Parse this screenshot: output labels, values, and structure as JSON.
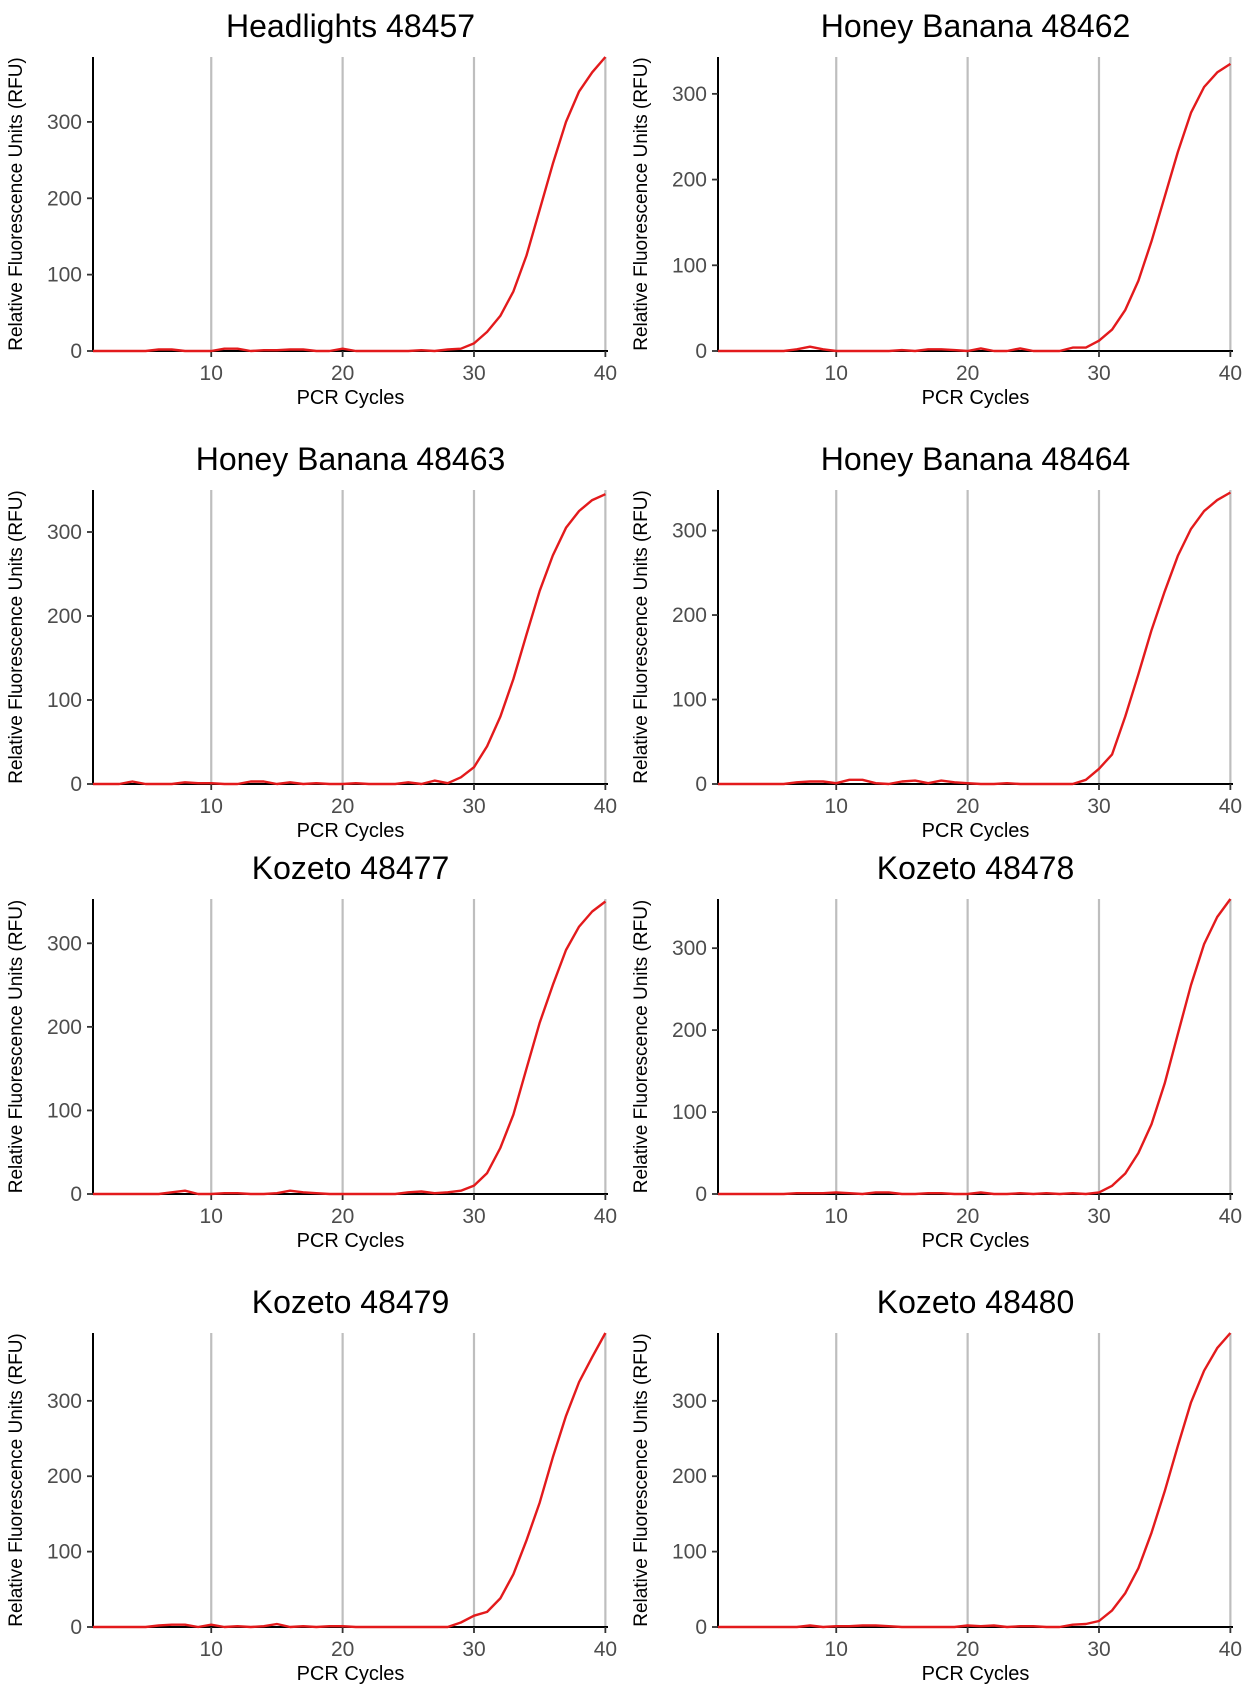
{
  "x_label": "PCR Cycles",
  "y_label": "Relative Fluorescence Units (RFU)",
  "colors": {
    "curve": "#e31a1c",
    "grid": "#bebebe",
    "axis": "#000000",
    "tick_text": "#4d4d4d"
  },
  "chart_data": [
    {
      "type": "line",
      "title": "Headlights 48457",
      "xlabel": "PCR Cycles",
      "ylabel": "Relative Fluorescence Units (RFU)",
      "xlim": [
        1,
        40.2
      ],
      "ylim": [
        0,
        385
      ],
      "x_ticks": [
        10,
        20,
        30,
        40
      ],
      "y_ticks": [
        0,
        100,
        200,
        300
      ],
      "grid_x": [
        10,
        20,
        30,
        40
      ],
      "x": [
        1,
        2,
        3,
        4,
        5,
        6,
        7,
        8,
        9,
        10,
        11,
        12,
        13,
        14,
        15,
        16,
        17,
        18,
        19,
        20,
        21,
        22,
        23,
        24,
        25,
        26,
        27,
        28,
        29,
        30,
        31,
        32,
        33,
        34,
        35,
        36,
        37,
        38,
        39,
        40
      ],
      "values": [
        0,
        0,
        0,
        0,
        0,
        2,
        2,
        0,
        0,
        0,
        3,
        3,
        0,
        1,
        1,
        2,
        2,
        0,
        0,
        3,
        0,
        0,
        0,
        0,
        0,
        1,
        0,
        2,
        3,
        10,
        25,
        46,
        78,
        125,
        185,
        245,
        300,
        340,
        365,
        385
      ]
    },
    {
      "type": "line",
      "title": "Honey Banana 48462",
      "xlabel": "PCR Cycles",
      "ylabel": "Relative Fluorescence Units (RFU)",
      "xlim": [
        1,
        40.2
      ],
      "ylim": [
        0,
        343
      ],
      "x_ticks": [
        10,
        20,
        30,
        40
      ],
      "y_ticks": [
        0,
        100,
        200,
        300
      ],
      "grid_x": [
        10,
        20,
        30,
        40
      ],
      "x": [
        1,
        2,
        3,
        4,
        5,
        6,
        7,
        8,
        9,
        10,
        11,
        12,
        13,
        14,
        15,
        16,
        17,
        18,
        19,
        20,
        21,
        22,
        23,
        24,
        25,
        26,
        27,
        28,
        29,
        30,
        31,
        32,
        33,
        34,
        35,
        36,
        37,
        38,
        39,
        40
      ],
      "values": [
        0,
        0,
        0,
        0,
        0,
        0,
        2,
        5,
        2,
        0,
        0,
        0,
        0,
        0,
        1,
        0,
        2,
        2,
        1,
        0,
        3,
        0,
        0,
        3,
        0,
        0,
        0,
        4,
        4,
        12,
        25,
        48,
        82,
        128,
        180,
        232,
        278,
        308,
        325,
        335
      ]
    },
    {
      "type": "line",
      "title": "Honey Banana 48463",
      "xlabel": "PCR Cycles",
      "ylabel": "Relative Fluorescence Units (RFU)",
      "xlim": [
        1,
        40.2
      ],
      "ylim": [
        0,
        350
      ],
      "x_ticks": [
        10,
        20,
        30,
        40
      ],
      "y_ticks": [
        0,
        100,
        200,
        300
      ],
      "grid_x": [
        10,
        20,
        30,
        40
      ],
      "x": [
        1,
        2,
        3,
        4,
        5,
        6,
        7,
        8,
        9,
        10,
        11,
        12,
        13,
        14,
        15,
        16,
        17,
        18,
        19,
        20,
        21,
        22,
        23,
        24,
        25,
        26,
        27,
        28,
        29,
        30,
        31,
        32,
        33,
        34,
        35,
        36,
        37,
        38,
        39,
        40
      ],
      "values": [
        0,
        0,
        0,
        3,
        0,
        0,
        0,
        2,
        1,
        1,
        0,
        0,
        3,
        3,
        0,
        2,
        0,
        1,
        0,
        0,
        1,
        0,
        0,
        0,
        2,
        0,
        4,
        1,
        8,
        20,
        45,
        80,
        125,
        178,
        230,
        272,
        305,
        325,
        338,
        345
      ]
    },
    {
      "type": "line",
      "title": "Honey Banana 48464",
      "xlabel": "PCR Cycles",
      "ylabel": "Relative Fluorescence Units (RFU)",
      "xlim": [
        1,
        40.2
      ],
      "ylim": [
        0,
        348
      ],
      "x_ticks": [
        10,
        20,
        30,
        40
      ],
      "y_ticks": [
        0,
        100,
        200,
        300
      ],
      "grid_x": [
        10,
        20,
        30,
        40
      ],
      "x": [
        1,
        2,
        3,
        4,
        5,
        6,
        7,
        8,
        9,
        10,
        11,
        12,
        13,
        14,
        15,
        16,
        17,
        18,
        19,
        20,
        21,
        22,
        23,
        24,
        25,
        26,
        27,
        28,
        29,
        30,
        31,
        32,
        33,
        34,
        35,
        36,
        37,
        38,
        39,
        40
      ],
      "values": [
        0,
        0,
        0,
        0,
        0,
        0,
        2,
        3,
        3,
        1,
        5,
        5,
        1,
        0,
        3,
        4,
        1,
        4,
        2,
        1,
        0,
        0,
        1,
        0,
        0,
        0,
        0,
        0,
        5,
        18,
        35,
        80,
        130,
        182,
        228,
        270,
        302,
        323,
        336,
        345
      ]
    },
    {
      "type": "line",
      "title": "Kozeto 48477",
      "xlabel": "PCR Cycles",
      "ylabel": "Relative Fluorescence Units (RFU)",
      "xlim": [
        1,
        40.2
      ],
      "ylim": [
        0,
        353
      ],
      "x_ticks": [
        10,
        20,
        30,
        40
      ],
      "y_ticks": [
        0,
        100,
        200,
        300
      ],
      "grid_x": [
        10,
        20,
        30,
        40
      ],
      "x": [
        1,
        2,
        3,
        4,
        5,
        6,
        7,
        8,
        9,
        10,
        11,
        12,
        13,
        14,
        15,
        16,
        17,
        18,
        19,
        20,
        21,
        22,
        23,
        24,
        25,
        26,
        27,
        28,
        29,
        30,
        31,
        32,
        33,
        34,
        35,
        36,
        37,
        38,
        39,
        40
      ],
      "values": [
        0,
        0,
        0,
        0,
        0,
        0,
        2,
        4,
        0,
        0,
        1,
        1,
        0,
        0,
        1,
        4,
        2,
        1,
        0,
        0,
        0,
        0,
        0,
        0,
        2,
        3,
        1,
        2,
        4,
        10,
        25,
        55,
        95,
        150,
        205,
        250,
        292,
        320,
        338,
        350
      ]
    },
    {
      "type": "line",
      "title": "Kozeto 48478",
      "xlabel": "PCR Cycles",
      "ylabel": "Relative Fluorescence Units (RFU)",
      "xlim": [
        1,
        40.2
      ],
      "ylim": [
        0,
        360
      ],
      "x_ticks": [
        10,
        20,
        30,
        40
      ],
      "y_ticks": [
        0,
        100,
        200,
        300
      ],
      "grid_x": [
        10,
        20,
        30,
        40
      ],
      "x": [
        1,
        2,
        3,
        4,
        5,
        6,
        7,
        8,
        9,
        10,
        11,
        12,
        13,
        14,
        15,
        16,
        17,
        18,
        19,
        20,
        21,
        22,
        23,
        24,
        25,
        26,
        27,
        28,
        29,
        30,
        31,
        32,
        33,
        34,
        35,
        36,
        37,
        38,
        39,
        40
      ],
      "values": [
        0,
        0,
        0,
        0,
        0,
        0,
        1,
        1,
        1,
        2,
        1,
        0,
        2,
        2,
        0,
        0,
        1,
        1,
        0,
        0,
        2,
        0,
        0,
        1,
        0,
        1,
        0,
        1,
        0,
        2,
        10,
        25,
        50,
        85,
        135,
        195,
        255,
        305,
        338,
        360
      ]
    },
    {
      "type": "line",
      "title": "Kozeto 48479",
      "xlabel": "PCR Cycles",
      "ylabel": "Relative Fluorescence Units (RFU)",
      "xlim": [
        1,
        40.2
      ],
      "ylim": [
        0,
        390
      ],
      "x_ticks": [
        10,
        20,
        30,
        40
      ],
      "y_ticks": [
        0,
        100,
        200,
        300
      ],
      "grid_x": [
        10,
        20,
        30,
        40
      ],
      "x": [
        1,
        2,
        3,
        4,
        5,
        6,
        7,
        8,
        9,
        10,
        11,
        12,
        13,
        14,
        15,
        16,
        17,
        18,
        19,
        20,
        21,
        22,
        23,
        24,
        25,
        26,
        27,
        28,
        29,
        30,
        31,
        32,
        33,
        34,
        35,
        36,
        37,
        38,
        39,
        40
      ],
      "values": [
        0,
        0,
        0,
        0,
        0,
        2,
        3,
        3,
        0,
        3,
        0,
        1,
        0,
        1,
        4,
        0,
        1,
        0,
        1,
        1,
        0,
        0,
        0,
        0,
        0,
        0,
        0,
        0,
        6,
        15,
        20,
        38,
        70,
        115,
        165,
        225,
        280,
        325,
        358,
        390
      ]
    },
    {
      "type": "line",
      "title": "Kozeto 48480",
      "xlabel": "PCR Cycles",
      "ylabel": "Relative Fluorescence Units (RFU)",
      "xlim": [
        1,
        40.2
      ],
      "ylim": [
        0,
        390
      ],
      "x_ticks": [
        10,
        20,
        30,
        40
      ],
      "y_ticks": [
        0,
        100,
        200,
        300
      ],
      "grid_x": [
        10,
        20,
        30,
        40
      ],
      "x": [
        1,
        2,
        3,
        4,
        5,
        6,
        7,
        8,
        9,
        10,
        11,
        12,
        13,
        14,
        15,
        16,
        17,
        18,
        19,
        20,
        21,
        22,
        23,
        24,
        25,
        26,
        27,
        28,
        29,
        30,
        31,
        32,
        33,
        34,
        35,
        36,
        37,
        38,
        39,
        40
      ],
      "values": [
        0,
        0,
        0,
        0,
        0,
        0,
        0,
        2,
        0,
        1,
        1,
        2,
        2,
        1,
        0,
        0,
        0,
        0,
        0,
        2,
        1,
        2,
        0,
        1,
        1,
        0,
        0,
        3,
        4,
        8,
        22,
        45,
        78,
        125,
        180,
        240,
        298,
        340,
        370,
        390
      ]
    }
  ]
}
